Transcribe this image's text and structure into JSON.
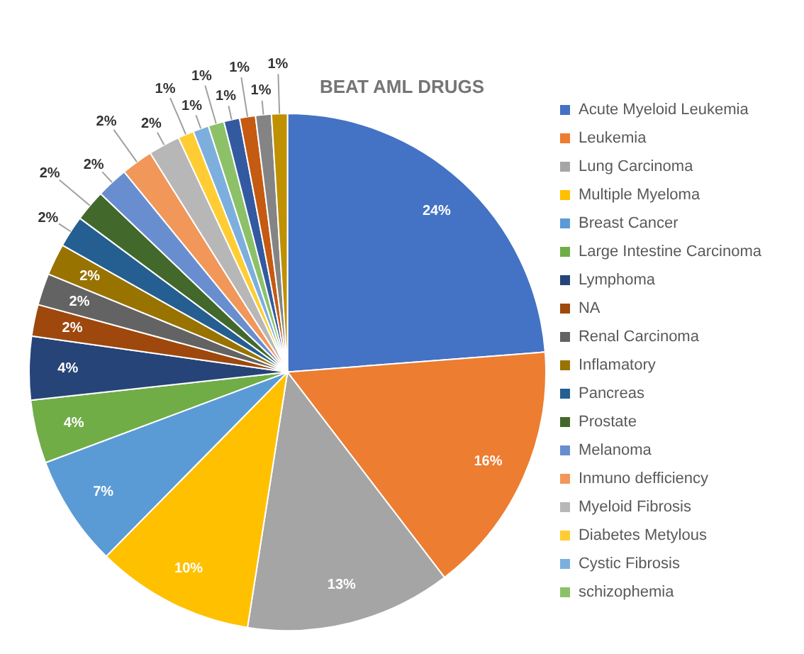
{
  "chart_data": {
    "type": "pie",
    "title": "BEAT AML DRUGS",
    "categories": [
      "Acute Myeloid Leukemia",
      "Leukemia",
      "Lung Carcinoma",
      "Multiple Myeloma",
      "Breast Cancer",
      "Large Intestine Carcinoma",
      "Lymphoma",
      "NA",
      "Renal Carcinoma",
      "Inflamatory",
      "Pancreas",
      "Prostate",
      "Melanoma",
      "Inmuno defficiency",
      "Myeloid Fibrosis",
      "Diabetes Metylous",
      "Cystic Fibrosis",
      "schizophemia",
      null,
      null,
      null,
      null
    ],
    "values": [
      24,
      16,
      13,
      10,
      7,
      4,
      4,
      2,
      2,
      2,
      2,
      2,
      2,
      2,
      2,
      1,
      1,
      1,
      1,
      1,
      1,
      1
    ],
    "value_labels": [
      "24%",
      "16%",
      "13%",
      "10%",
      "7%",
      "4%",
      "4%",
      "2%",
      "2%",
      "2%",
      "2%",
      "2%",
      "2%",
      "2%",
      "2%",
      "1%",
      "1%",
      "1%",
      "1%",
      "1%",
      "1%",
      "1%"
    ],
    "colors": [
      "#4472c4",
      "#ed7d31",
      "#a5a5a5",
      "#ffc000",
      "#5b9bd5",
      "#70ad47",
      "#264478",
      "#9e480e",
      "#636363",
      "#997300",
      "#255e91",
      "#43682b",
      "#698ed0",
      "#f1975a",
      "#b7b7b7",
      "#ffcd33",
      "#7cafdd",
      "#8cc168",
      "#335aa1",
      "#c55a11",
      "#848484",
      "#bf9000"
    ],
    "legend": "right"
  }
}
